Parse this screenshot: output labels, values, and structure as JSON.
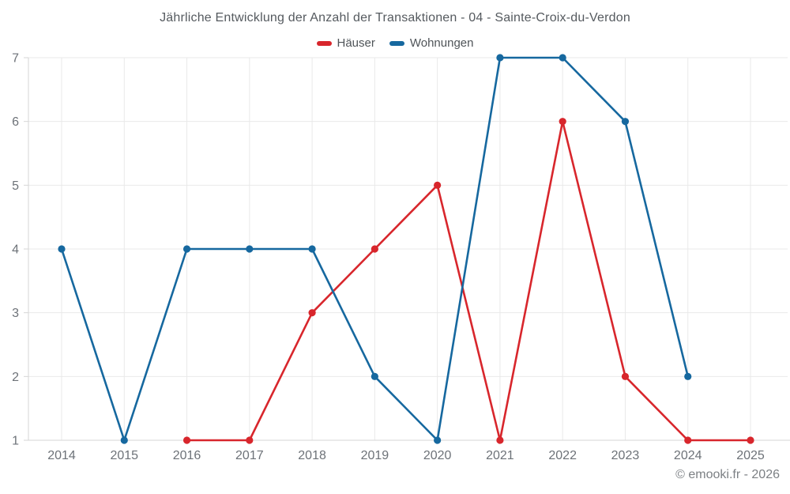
{
  "title": "Jährliche Entwicklung der Anzahl der Transaktionen - 04 - Sainte-Croix-du-Verdon",
  "footer_credit": "© emooki.fr - 2026",
  "legend": {
    "items": [
      {
        "label": "Häuser",
        "color": "#d8262c"
      },
      {
        "label": "Wohnungen",
        "color": "#16689f"
      }
    ]
  },
  "chart_data": {
    "type": "line",
    "title": "Jährliche Entwicklung der Anzahl der Transaktionen - 04 - Sainte-Croix-du-Verdon",
    "xlabel": "",
    "ylabel": "",
    "categories": [
      "2014",
      "2015",
      "2016",
      "2017",
      "2018",
      "2019",
      "2020",
      "2021",
      "2022",
      "2023",
      "2024",
      "2025"
    ],
    "series": [
      {
        "name": "Häuser",
        "color": "#d8262c",
        "values": [
          null,
          null,
          1,
          1,
          3,
          4,
          5,
          1,
          6,
          2,
          1,
          1
        ]
      },
      {
        "name": "Wohnungen",
        "color": "#16689f",
        "values": [
          4,
          1,
          4,
          4,
          4,
          2,
          1,
          7,
          7,
          6,
          2,
          null
        ]
      }
    ],
    "ylim": [
      1,
      7
    ],
    "yticks": [
      1,
      2,
      3,
      4,
      5,
      6,
      7
    ],
    "grid": true,
    "legend_position": "top",
    "marker": "circle"
  },
  "colors": {
    "grid": "#e9e9e9",
    "axis": "#d6d6d6",
    "tick_label": "#6d7278",
    "background": "#ffffff"
  }
}
